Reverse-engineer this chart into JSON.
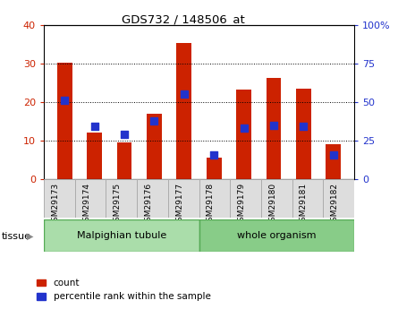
{
  "title": "GDS732 / 148506_at",
  "samples": [
    "GSM29173",
    "GSM29174",
    "GSM29175",
    "GSM29176",
    "GSM29177",
    "GSM29178",
    "GSM29179",
    "GSM29180",
    "GSM29181",
    "GSM29182"
  ],
  "counts": [
    30.2,
    12.1,
    9.5,
    17.0,
    35.2,
    5.5,
    23.2,
    26.2,
    23.5,
    9.0
  ],
  "percentiles": [
    51,
    34,
    29,
    38,
    55,
    16,
    33,
    35,
    34,
    16
  ],
  "bar_color": "#cc2200",
  "dot_color": "#2233cc",
  "left_ylim": [
    0,
    40
  ],
  "right_ylim": [
    0,
    100
  ],
  "left_yticks": [
    0,
    10,
    20,
    30,
    40
  ],
  "right_yticks": [
    0,
    25,
    50,
    75,
    100
  ],
  "right_yticklabels": [
    "0",
    "25",
    "50",
    "75",
    "100%"
  ],
  "tissue_groups": [
    {
      "label": "Malpighian tubule",
      "start": 0,
      "end": 5,
      "color": "#aaddaa"
    },
    {
      "label": "whole organism",
      "start": 5,
      "end": 10,
      "color": "#88cc88"
    }
  ],
  "tissue_label": "tissue",
  "legend_count_label": "count",
  "legend_pct_label": "percentile rank within the sample",
  "bar_width": 0.5,
  "axis_label_color_left": "#cc2200",
  "axis_label_color_right": "#2233cc"
}
